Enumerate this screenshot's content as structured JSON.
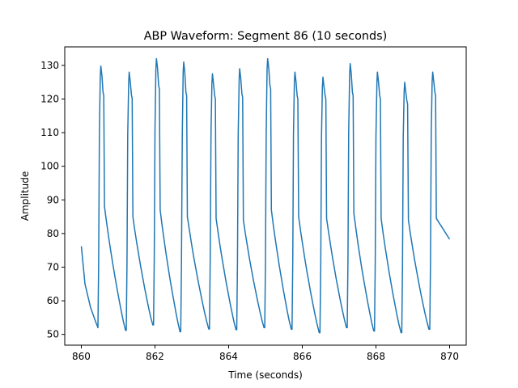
{
  "chart_data": {
    "type": "line",
    "title": "ABP Waveform: Segment 86 (10 seconds)",
    "xlabel": "Time (seconds)",
    "ylabel": "Amplitude",
    "xlim": [
      859.55,
      870.45
    ],
    "ylim": [
      46.8,
      135.5
    ],
    "xticks": [
      860,
      862,
      864,
      866,
      868,
      870
    ],
    "yticks": [
      50,
      60,
      70,
      80,
      90,
      100,
      110,
      120,
      130
    ],
    "grid": false,
    "series": [
      {
        "color": "#1f77b4",
        "beats": [
          {
            "x": [
              860.0,
              860.1,
              860.25,
              860.38,
              860.45
            ],
            "y": [
              76.2,
              65.0,
              58.0,
              54.0,
              52.0
            ]
          },
          {
            "start": 860.45,
            "end": 861.22,
            "min": 51.8,
            "peak": 129.8,
            "dicrotic": 121.0,
            "tail": 88.0,
            "next": 51.2
          },
          {
            "start": 861.22,
            "end": 861.96,
            "min": 51.2,
            "peak": 128.0,
            "dicrotic": 120.2,
            "tail": 85.0,
            "next": 52.8
          },
          {
            "start": 861.96,
            "end": 862.7,
            "min": 52.8,
            "peak": 132.0,
            "dicrotic": 123.0,
            "tail": 87.0,
            "next": 50.8
          },
          {
            "start": 862.7,
            "end": 863.48,
            "min": 50.8,
            "peak": 131.0,
            "dicrotic": 121.0,
            "tail": 85.0,
            "next": 51.6
          },
          {
            "start": 863.48,
            "end": 864.22,
            "min": 51.6,
            "peak": 127.5,
            "dicrotic": 120.0,
            "tail": 84.5,
            "next": 51.4
          },
          {
            "start": 864.22,
            "end": 864.98,
            "min": 51.4,
            "peak": 129.0,
            "dicrotic": 120.5,
            "tail": 84.0,
            "next": 52.0
          },
          {
            "start": 864.98,
            "end": 865.72,
            "min": 52.0,
            "peak": 132.0,
            "dicrotic": 123.0,
            "tail": 87.0,
            "next": 51.5
          },
          {
            "start": 865.72,
            "end": 866.48,
            "min": 51.5,
            "peak": 128.0,
            "dicrotic": 120.0,
            "tail": 85.0,
            "next": 50.5
          },
          {
            "start": 866.48,
            "end": 867.22,
            "min": 50.5,
            "peak": 126.5,
            "dicrotic": 120.0,
            "tail": 84.5,
            "next": 52.0
          },
          {
            "start": 867.22,
            "end": 867.96,
            "min": 52.0,
            "peak": 130.5,
            "dicrotic": 121.0,
            "tail": 86.0,
            "next": 51.0
          },
          {
            "start": 867.96,
            "end": 868.7,
            "min": 51.0,
            "peak": 128.0,
            "dicrotic": 120.0,
            "tail": 84.5,
            "next": 50.5
          },
          {
            "start": 868.7,
            "end": 869.46,
            "min": 50.5,
            "peak": 125.0,
            "dicrotic": 118.5,
            "tail": 84.0,
            "next": 51.5
          },
          {
            "start": 869.46,
            "end": 870.0,
            "min": 51.5,
            "peak": 128.0,
            "dicrotic": 121.0,
            "tail": 84.5,
            "partial": true,
            "final": 78.3
          }
        ]
      }
    ]
  }
}
